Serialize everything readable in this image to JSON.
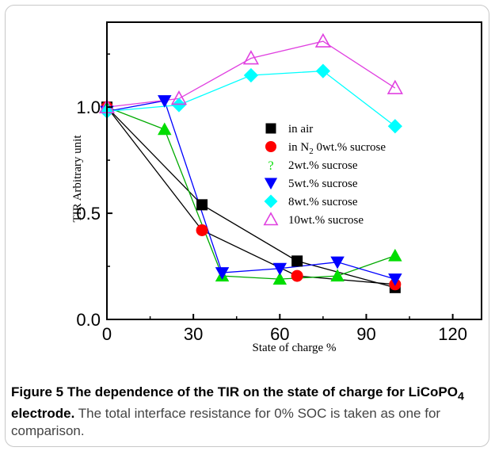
{
  "figure": {
    "label": "Figure 5",
    "title": "The dependence of the TIR on the state of charge for",
    "compound": "LiCoPO",
    "compound_sub": "4",
    "compound_rest": "electrode.",
    "text": "The total interface resistance for 0% SOC is taken as one for comparison."
  },
  "chart_data": {
    "type": "line",
    "xlabel": "State of charge %",
    "ylabel": "TIR Arbitrary unit",
    "xlim": [
      0,
      130
    ],
    "ylim": [
      0.0,
      1.4
    ],
    "xticks": [
      "0",
      "30",
      "60",
      "90",
      "120"
    ],
    "yticks": [
      "0.0",
      "0.5",
      "1.0"
    ],
    "legend_position": "center-right",
    "series": [
      {
        "name": "in air",
        "marker": "square",
        "color": "#000000",
        "line_color": "#000000",
        "filled": true,
        "x": [
          0,
          33,
          66,
          100
        ],
        "y": [
          1.0,
          0.54,
          0.275,
          0.15
        ]
      },
      {
        "name": "in N₂ 0wt.% sucrose",
        "legend_main": "in N",
        "legend_sub": "2",
        "legend_rest": " 0wt.% sucrose",
        "marker": "circle",
        "color": "#ff0000",
        "line_color": "#000000",
        "filled": true,
        "x": [
          0,
          33,
          66,
          100
        ],
        "y": [
          1.0,
          0.42,
          0.205,
          0.165
        ]
      },
      {
        "name": "2wt.% sucrose",
        "marker": "triangle-up",
        "color": "#00dd00",
        "line_color": "#00aa00",
        "filled": true,
        "x": [
          0,
          20,
          40,
          60,
          80,
          100
        ],
        "y": [
          1.0,
          0.895,
          0.205,
          0.19,
          0.205,
          0.3
        ]
      },
      {
        "name": "5wt.% sucrose",
        "marker": "triangle-down",
        "color": "#0000ff",
        "line_color": "#0000ff",
        "filled": true,
        "x": [
          0,
          20,
          40,
          60,
          80,
          100
        ],
        "y": [
          0.98,
          1.03,
          0.22,
          0.24,
          0.27,
          0.19
        ]
      },
      {
        "name": "8wt.% sucrose",
        "marker": "diamond",
        "color": "#00ffff",
        "line_color": "#00ffff",
        "filled": true,
        "x": [
          0,
          25,
          50,
          75,
          100
        ],
        "y": [
          0.98,
          1.01,
          1.15,
          1.17,
          0.91
        ]
      },
      {
        "name": "10wt.% sucrose",
        "marker": "triangle-up",
        "color": "#e040e0",
        "line_color": "#e040e0",
        "filled": false,
        "x": [
          0,
          25,
          50,
          75,
          100
        ],
        "y": [
          1.0,
          1.04,
          1.23,
          1.31,
          1.09
        ]
      }
    ]
  }
}
